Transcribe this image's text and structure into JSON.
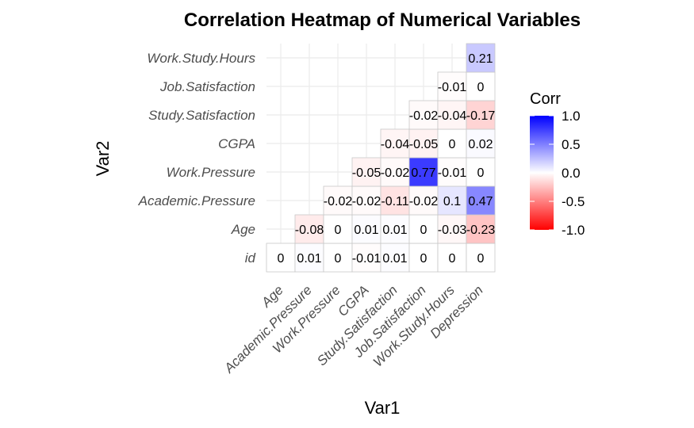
{
  "chart_data": {
    "type": "heatmap",
    "title": "Correlation Heatmap of Numerical Variables",
    "xlabel": "Var1",
    "ylabel": "Var2",
    "x_categories": [
      "Age",
      "Academic.Pressure",
      "Work.Pressure",
      "CGPA",
      "Study.Satisfaction",
      "Job.Satisfaction",
      "Work.Study.Hours",
      "Depression"
    ],
    "y_categories": [
      "id",
      "Age",
      "Academic.Pressure",
      "Work.Pressure",
      "CGPA",
      "Study.Satisfaction",
      "Job.Satisfaction",
      "Work.Study.Hours"
    ],
    "cells": [
      {
        "x": "Age",
        "y": "id",
        "value": 0,
        "label": "0"
      },
      {
        "x": "Academic.Pressure",
        "y": "id",
        "value": 0.01,
        "label": "0.01"
      },
      {
        "x": "Work.Pressure",
        "y": "id",
        "value": 0,
        "label": "0"
      },
      {
        "x": "CGPA",
        "y": "id",
        "value": -0.01,
        "label": "-0.01"
      },
      {
        "x": "Study.Satisfaction",
        "y": "id",
        "value": 0.01,
        "label": "0.01"
      },
      {
        "x": "Job.Satisfaction",
        "y": "id",
        "value": 0,
        "label": "0"
      },
      {
        "x": "Work.Study.Hours",
        "y": "id",
        "value": 0,
        "label": "0"
      },
      {
        "x": "Depression",
        "y": "id",
        "value": 0,
        "label": "0"
      },
      {
        "x": "Academic.Pressure",
        "y": "Age",
        "value": -0.08,
        "label": "-0.08"
      },
      {
        "x": "Work.Pressure",
        "y": "Age",
        "value": 0,
        "label": "0"
      },
      {
        "x": "CGPA",
        "y": "Age",
        "value": 0.01,
        "label": "0.01"
      },
      {
        "x": "Study.Satisfaction",
        "y": "Age",
        "value": 0.01,
        "label": "0.01"
      },
      {
        "x": "Job.Satisfaction",
        "y": "Age",
        "value": 0,
        "label": "0"
      },
      {
        "x": "Work.Study.Hours",
        "y": "Age",
        "value": -0.03,
        "label": "-0.03"
      },
      {
        "x": "Depression",
        "y": "Age",
        "value": -0.23,
        "label": "-0.23"
      },
      {
        "x": "Work.Pressure",
        "y": "Academic.Pressure",
        "value": -0.02,
        "label": "-0.02"
      },
      {
        "x": "CGPA",
        "y": "Academic.Pressure",
        "value": -0.02,
        "label": "-0.02"
      },
      {
        "x": "Study.Satisfaction",
        "y": "Academic.Pressure",
        "value": -0.11,
        "label": "-0.11"
      },
      {
        "x": "Job.Satisfaction",
        "y": "Academic.Pressure",
        "value": -0.02,
        "label": "-0.02"
      },
      {
        "x": "Work.Study.Hours",
        "y": "Academic.Pressure",
        "value": 0.1,
        "label": "0.1"
      },
      {
        "x": "Depression",
        "y": "Academic.Pressure",
        "value": 0.47,
        "label": "0.47"
      },
      {
        "x": "CGPA",
        "y": "Work.Pressure",
        "value": -0.05,
        "label": "-0.05"
      },
      {
        "x": "Study.Satisfaction",
        "y": "Work.Pressure",
        "value": -0.02,
        "label": "-0.02"
      },
      {
        "x": "Job.Satisfaction",
        "y": "Work.Pressure",
        "value": 0.77,
        "label": "0.77"
      },
      {
        "x": "Work.Study.Hours",
        "y": "Work.Pressure",
        "value": -0.01,
        "label": "-0.01"
      },
      {
        "x": "Depression",
        "y": "Work.Pressure",
        "value": 0,
        "label": "0"
      },
      {
        "x": "Study.Satisfaction",
        "y": "CGPA",
        "value": -0.04,
        "label": "-0.04"
      },
      {
        "x": "Job.Satisfaction",
        "y": "CGPA",
        "value": -0.05,
        "label": "-0.05"
      },
      {
        "x": "Work.Study.Hours",
        "y": "CGPA",
        "value": 0,
        "label": "0"
      },
      {
        "x": "Depression",
        "y": "CGPA",
        "value": 0.02,
        "label": "0.02"
      },
      {
        "x": "Job.Satisfaction",
        "y": "Study.Satisfaction",
        "value": -0.02,
        "label": "-0.02"
      },
      {
        "x": "Work.Study.Hours",
        "y": "Study.Satisfaction",
        "value": -0.04,
        "label": "-0.04"
      },
      {
        "x": "Depression",
        "y": "Study.Satisfaction",
        "value": -0.17,
        "label": "-0.17"
      },
      {
        "x": "Work.Study.Hours",
        "y": "Job.Satisfaction",
        "value": -0.01,
        "label": "-0.01"
      },
      {
        "x": "Depression",
        "y": "Job.Satisfaction",
        "value": 0,
        "label": "0"
      },
      {
        "x": "Depression",
        "y": "Work.Study.Hours",
        "value": 0.21,
        "label": "0.21"
      }
    ],
    "legend": {
      "title": "Corr",
      "ticks": [
        "1.0",
        "0.5",
        "0.0",
        "-0.5",
        "-1.0"
      ],
      "tick_values": [
        1.0,
        0.5,
        0.0,
        -0.5,
        -1.0
      ],
      "placement": "right"
    },
    "colors": {
      "low": "#ff0000",
      "mid": "#ffffff",
      "high": "#0000ff"
    },
    "value_range": [
      -1,
      1
    ],
    "grid": true
  }
}
